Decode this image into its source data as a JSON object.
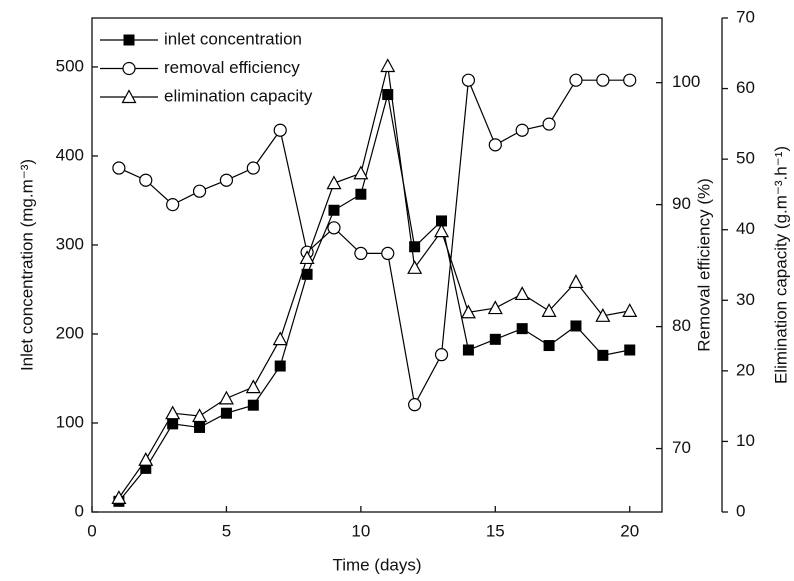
{
  "chart_data": {
    "type": "line",
    "x_label": "Time (days)",
    "y_label": "Inlet concentration (mg.m⁻³)",
    "y2_label": "Removal efficiency (%)",
    "y3_label": "Elimination capacity (g.m⁻³.h⁻¹)",
    "x": [
      1,
      2,
      3,
      4,
      5,
      6,
      7,
      8,
      9,
      10,
      11,
      12,
      13,
      14,
      15,
      16,
      17,
      18,
      19,
      20
    ],
    "xlim": [
      0,
      21.2
    ],
    "xticks": [
      0,
      5,
      10,
      15,
      20
    ],
    "ylim": [
      0,
      555
    ],
    "yticks": [
      0,
      100,
      200,
      300,
      400,
      500
    ],
    "y2lim": [
      64.8,
      105.3
    ],
    "y2ticks": [
      70,
      80,
      90,
      100
    ],
    "y3lim": [
      0,
      70
    ],
    "y3ticks": [
      0,
      10,
      20,
      30,
      40,
      50,
      60,
      70
    ],
    "legend": "upper left",
    "series": [
      {
        "name": "inlet concentration",
        "color": "#000000",
        "marker": "square",
        "axis": "y",
        "values": [
          12,
          49,
          99,
          95,
          111,
          120,
          164,
          267,
          339,
          357,
          469,
          298,
          327,
          182,
          194,
          206,
          187,
          209,
          176,
          182
        ]
      },
      {
        "name": "removal efficiency",
        "color": "#000000",
        "marker": "circle",
        "axis": "y2",
        "values": [
          93.0,
          92.0,
          90.0,
          91.1,
          92.0,
          93.0,
          96.1,
          86.1,
          88.1,
          86.0,
          86.0,
          73.6,
          77.7,
          100.2,
          94.9,
          96.1,
          96.6,
          100.2,
          100.2,
          100.2
        ]
      },
      {
        "name": "elimination capacity",
        "color": "#000000",
        "marker": "triangle",
        "axis": "y3",
        "values": [
          2.0,
          7.4,
          14.0,
          13.6,
          16.1,
          17.7,
          24.5,
          36.0,
          46.6,
          48.0,
          63.2,
          34.6,
          39.8,
          28.3,
          28.9,
          30.9,
          28.5,
          32.6,
          27.8,
          28.5
        ]
      }
    ]
  }
}
